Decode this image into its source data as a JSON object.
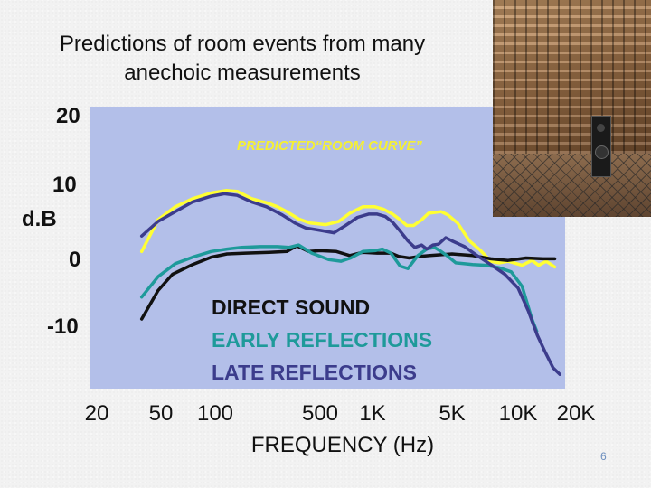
{
  "slide": {
    "title_line1": "Predictions of room events from many",
    "title_line2": "anechoic measurements",
    "page_number": "6"
  },
  "photo": {
    "icon": "anechoic-chamber-photo"
  },
  "chart_data": {
    "type": "line",
    "title": "",
    "ylabel": "d.B",
    "xlabel": "FREQUENCY (Hz)",
    "y_ticks": [
      20,
      10,
      0,
      -10
    ],
    "x_ticks": [
      {
        "label": "20",
        "value": 20
      },
      {
        "label": "50",
        "value": 50
      },
      {
        "label": "100",
        "value": 100
      },
      {
        "label": "500",
        "value": 500
      },
      {
        "label": "1K",
        "value": 1000
      },
      {
        "label": "5K",
        "value": 5000
      },
      {
        "label": "10K",
        "value": 10000
      },
      {
        "label": "20K",
        "value": 20000
      }
    ],
    "plot_background": "#b3bfe9",
    "annotation": "PREDICTED“ROOM CURVE”",
    "series": [
      {
        "name": "PREDICTED“ROOM CURVE”",
        "color": "#ffff33",
        "points": [
          [
            38,
            0.3
          ],
          [
            48,
            4.2
          ],
          [
            60,
            5.8
          ],
          [
            75,
            6.8
          ],
          [
            95,
            7.5
          ],
          [
            118,
            7.8
          ],
          [
            140,
            7.7
          ],
          [
            175,
            6.8
          ],
          [
            220,
            6.3
          ],
          [
            260,
            5.8
          ],
          [
            300,
            5.2
          ],
          [
            360,
            4.3
          ],
          [
            430,
            3.8
          ],
          [
            540,
            3.6
          ],
          [
            640,
            4.0
          ],
          [
            740,
            5.0
          ],
          [
            880,
            5.8
          ],
          [
            1050,
            5.8
          ],
          [
            1250,
            5.5
          ],
          [
            1500,
            4.9
          ],
          [
            1750,
            4.2
          ],
          [
            2000,
            3.5
          ],
          [
            2300,
            3.5
          ],
          [
            2700,
            4.2
          ],
          [
            3100,
            5.0
          ],
          [
            3500,
            5.1
          ],
          [
            4000,
            5.2
          ],
          [
            4600,
            4.8
          ],
          [
            5300,
            3.8
          ],
          [
            6000,
            1.6
          ],
          [
            6700,
            0.5
          ],
          [
            7500,
            -0.9
          ],
          [
            8200,
            -1.1
          ],
          [
            9000,
            -0.9
          ],
          [
            10500,
            -1.4
          ],
          [
            11800,
            -0.8
          ],
          [
            12800,
            -1.4
          ],
          [
            14000,
            -0.9
          ],
          [
            15500,
            -1.6
          ]
        ]
      },
      {
        "name": "DIRECT SOUND",
        "color": "#111111",
        "points": [
          [
            38,
            -8.0
          ],
          [
            48,
            -4.5
          ],
          [
            58,
            -2.5
          ],
          [
            75,
            -1.3
          ],
          [
            95,
            -0.4
          ],
          [
            120,
            0.0
          ],
          [
            160,
            0.1
          ],
          [
            230,
            0.2
          ],
          [
            300,
            0.3
          ],
          [
            350,
            1.0
          ],
          [
            420,
            0.3
          ],
          [
            500,
            0.4
          ],
          [
            620,
            0.3
          ],
          [
            740,
            -0.2
          ],
          [
            880,
            0.2
          ],
          [
            1100,
            0.1
          ],
          [
            1450,
            0.1
          ],
          [
            1700,
            -0.3
          ],
          [
            2100,
            -0.5
          ],
          [
            2600,
            -0.3
          ],
          [
            3200,
            -0.2
          ],
          [
            4000,
            -0.1
          ],
          [
            5000,
            0.0
          ],
          [
            6200,
            -0.2
          ],
          [
            7500,
            -0.6
          ],
          [
            9000,
            -0.8
          ],
          [
            11000,
            -0.5
          ],
          [
            13500,
            -0.6
          ],
          [
            15500,
            -0.6
          ]
        ]
      },
      {
        "name": "EARLY REFLECTIONS",
        "color": "#1e9a9a",
        "points": [
          [
            38,
            -5.3
          ],
          [
            48,
            -2.8
          ],
          [
            60,
            -1.2
          ],
          [
            75,
            -0.4
          ],
          [
            95,
            0.3
          ],
          [
            120,
            0.6
          ],
          [
            150,
            0.8
          ],
          [
            200,
            0.9
          ],
          [
            260,
            0.9
          ],
          [
            310,
            0.8
          ],
          [
            360,
            1.1
          ],
          [
            440,
            0.1
          ],
          [
            560,
            -0.7
          ],
          [
            660,
            -0.9
          ],
          [
            750,
            -0.5
          ],
          [
            880,
            0.3
          ],
          [
            1050,
            0.4
          ],
          [
            1220,
            0.6
          ],
          [
            1450,
            0.1
          ],
          [
            1750,
            -1.5
          ],
          [
            2050,
            -1.8
          ],
          [
            2500,
            -0.2
          ],
          [
            3000,
            0.6
          ],
          [
            3500,
            0.8
          ],
          [
            4000,
            0.3
          ],
          [
            4500,
            -0.2
          ],
          [
            5200,
            -1.1
          ],
          [
            6200,
            -1.3
          ],
          [
            7200,
            -1.4
          ],
          [
            8200,
            -1.7
          ],
          [
            9300,
            -2.2
          ],
          [
            10500,
            -4.0
          ],
          [
            11800,
            -8.0
          ],
          [
            12500,
            -9.5
          ]
        ]
      },
      {
        "name": "LATE REFLECTIONS",
        "color": "#3c3c8c",
        "points": [
          [
            38,
            2.2
          ],
          [
            48,
            4.0
          ],
          [
            60,
            5.2
          ],
          [
            75,
            6.4
          ],
          [
            95,
            7.1
          ],
          [
            115,
            7.4
          ],
          [
            140,
            7.2
          ],
          [
            175,
            6.4
          ],
          [
            220,
            5.8
          ],
          [
            280,
            4.8
          ],
          [
            340,
            3.8
          ],
          [
            400,
            3.2
          ],
          [
            500,
            2.9
          ],
          [
            600,
            2.6
          ],
          [
            700,
            3.5
          ],
          [
            820,
            4.5
          ],
          [
            950,
            4.9
          ],
          [
            1100,
            4.9
          ],
          [
            1300,
            4.6
          ],
          [
            1500,
            3.9
          ],
          [
            1750,
            2.8
          ],
          [
            2050,
            1.6
          ],
          [
            2350,
            0.8
          ],
          [
            2700,
            1.1
          ],
          [
            3000,
            0.6
          ],
          [
            3400,
            1.1
          ],
          [
            3800,
            1.2
          ],
          [
            4400,
            2.0
          ],
          [
            5000,
            1.6
          ],
          [
            5700,
            0.9
          ],
          [
            6500,
            -0.2
          ],
          [
            7500,
            -1.3
          ],
          [
            8700,
            -2.5
          ],
          [
            10000,
            -4.2
          ],
          [
            11300,
            -7.0
          ],
          [
            12600,
            -10.0
          ],
          [
            13800,
            -12.0
          ],
          [
            15200,
            -14.0
          ],
          [
            16500,
            -14.8
          ]
        ]
      }
    ],
    "legend": [
      {
        "label": "DIRECT SOUND",
        "color": "#111111"
      },
      {
        "label": "EARLY REFLECTIONS",
        "color": "#1e9a9a"
      },
      {
        "label": "LATE REFLECTIONS",
        "color": "#3c3c8c"
      }
    ]
  }
}
